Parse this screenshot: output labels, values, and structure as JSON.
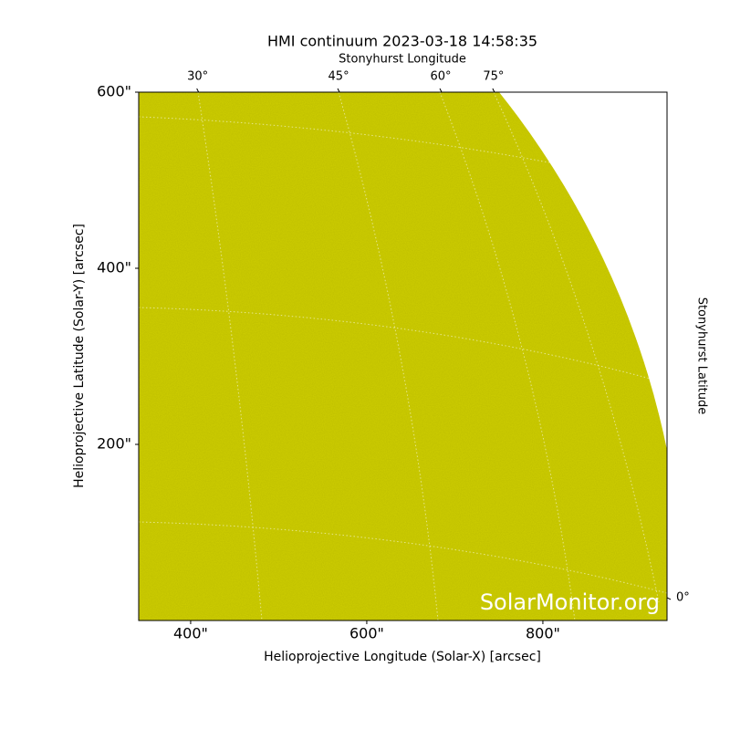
{
  "chart_data": {
    "type": "image",
    "title": "HMI continuum 2023-03-18 14:58:35",
    "x_label": "Helioprojective Longitude (Solar-X) [arcsec]",
    "y_label": "Helioprojective Latitude (Solar-Y) [arcsec]",
    "top_label": "Stonyhurst Longitude",
    "right_label": "Stonyhurst Latitude",
    "xlim": [
      341,
      941
    ],
    "ylim": [
      0,
      600
    ],
    "xticks": [
      {
        "value": 400,
        "label": "400\""
      },
      {
        "value": 600,
        "label": "600\""
      },
      {
        "value": 800,
        "label": "800\""
      }
    ],
    "yticks": [
      {
        "value": 200,
        "label": "200\""
      },
      {
        "value": 400,
        "label": "400\""
      },
      {
        "value": 600,
        "label": "600\""
      }
    ],
    "top_ticks": [
      {
        "value": 30,
        "label": "30°",
        "x": 408
      },
      {
        "value": 45,
        "label": "45°",
        "x": 568
      },
      {
        "value": 60,
        "label": "60°",
        "x": 684
      },
      {
        "value": 75,
        "label": "75°",
        "x": 744
      }
    ],
    "right_ticks": [
      {
        "value": 0,
        "label": "0°",
        "y": 26
      }
    ],
    "color": "#cccc00",
    "watermark": "SolarMonitor.org"
  }
}
